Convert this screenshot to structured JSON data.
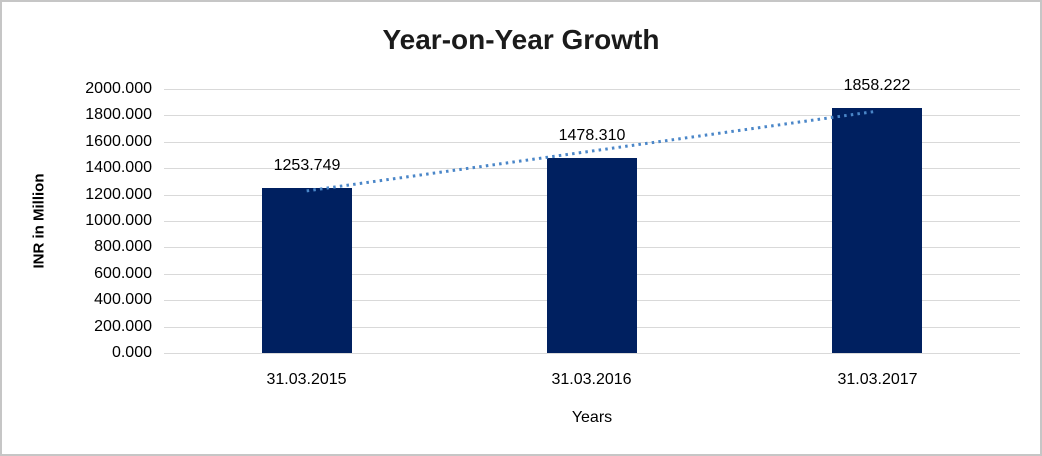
{
  "chart_data": {
    "type": "bar",
    "title": "Year-on-Year Growth",
    "categories": [
      "31.03.2015",
      "31.03.2016",
      "31.03.2017"
    ],
    "values": [
      1253.749,
      1478.31,
      1858.222
    ],
    "data_labels": [
      "1253.749",
      "1478.310",
      "1858.222"
    ],
    "xlabel": "Years",
    "ylabel": "INR in Million",
    "ylim": [
      0,
      2000
    ],
    "ytick_step": 200,
    "ytick_labels_top_to_bottom": [
      "2000.000",
      "1800.000",
      "1600.000",
      "1400.000",
      "1200.000",
      "1000.000",
      "800.000",
      "600.000",
      "400.000",
      "200.000",
      "0.000"
    ],
    "grid": "horizontal",
    "legend_position": "none",
    "bar_color": "#002060",
    "gridline_color": "#d9d9d9",
    "trendline": {
      "type": "linear",
      "style": "dotted",
      "color": "#4a86c8"
    }
  }
}
